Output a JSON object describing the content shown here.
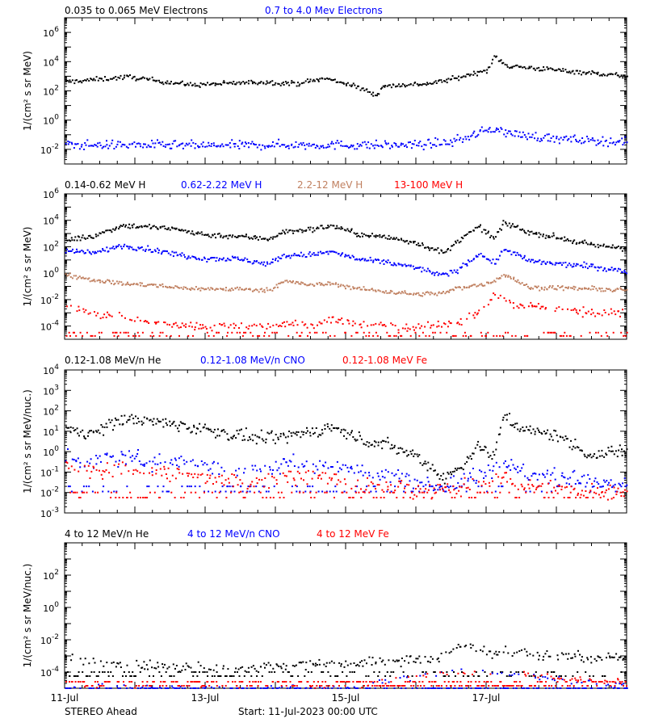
{
  "footer": {
    "spacecraft": "STEREO Ahead",
    "start": "Start: 11-Jul-2023 00:00 UTC"
  },
  "chart_data": [
    {
      "type": "scatter",
      "panel": "electrons",
      "ylabel": "1/(cm² s sr MeV)",
      "ylim_log10": [
        -3,
        7
      ],
      "y_scale": "log",
      "xlim_days": [
        0,
        8
      ],
      "x_ticks": [
        "11-Jul",
        "13-Jul",
        "15-Jul",
        "17-Jul"
      ],
      "x_tick_days": [
        0,
        2,
        4,
        6
      ],
      "y_ticks": [
        {
          "base": "10",
          "exp": "6",
          "v": 6
        },
        {
          "base": "10",
          "exp": "4",
          "v": 4
        },
        {
          "base": "10",
          "exp": "2",
          "v": 2
        },
        {
          "base": "10",
          "exp": "0",
          "v": 0
        },
        {
          "base": "10",
          "exp": "-2",
          "v": -2
        }
      ],
      "series": [
        {
          "name": "0.035 to 0.065 MeV Electrons",
          "color": "#000000",
          "scatter": 0.08,
          "floor_log10": null,
          "floor_frac": 0,
          "x": [
            0,
            0.5,
            0.9,
            1.3,
            1.8,
            2.3,
            2.8,
            3.3,
            3.7,
            4.0,
            4.3,
            4.45,
            4.5,
            4.8,
            5.2,
            5.6,
            5.9,
            6.05,
            6.1,
            6.3,
            6.8,
            7.3,
            8.0
          ],
          "y_log10": [
            2.6,
            2.8,
            2.95,
            2.7,
            2.4,
            2.5,
            2.6,
            2.5,
            2.85,
            2.5,
            2.0,
            1.7,
            2.3,
            2.4,
            2.5,
            2.9,
            3.3,
            3.5,
            4.4,
            3.7,
            3.5,
            3.3,
            3.0
          ]
        },
        {
          "name": "0.7 to 4.0 Mev Electrons",
          "color": "#0000ff",
          "scatter": 0.15,
          "floor_log10": null,
          "floor_frac": 0,
          "x": [
            0,
            1,
            2,
            3,
            4,
            4.5,
            5.0,
            5.5,
            5.7,
            6.0,
            6.1,
            6.3,
            7,
            8
          ],
          "y_log10": [
            -1.7,
            -1.7,
            -1.75,
            -1.7,
            -1.7,
            -1.72,
            -1.7,
            -1.5,
            -1.2,
            -0.7,
            -0.55,
            -0.9,
            -1.3,
            -1.5
          ]
        }
      ],
      "legend": [
        {
          "label": "0.035 to 0.065 MeV Electrons",
          "color": "#000000"
        },
        {
          "label": "0.7 to 4.0 Mev Electrons",
          "color": "#0000ff"
        }
      ]
    },
    {
      "type": "scatter",
      "panel": "protons",
      "ylabel": "1/(cm² s sr MeV)",
      "ylim_log10": [
        -5,
        6
      ],
      "y_scale": "log",
      "xlim_days": [
        0,
        8
      ],
      "x_ticks": [
        "11-Jul",
        "13-Jul",
        "15-Jul",
        "17-Jul"
      ],
      "x_tick_days": [
        0,
        2,
        4,
        6
      ],
      "y_ticks": [
        {
          "base": "10",
          "exp": "6",
          "v": 6
        },
        {
          "base": "10",
          "exp": "4",
          "v": 4
        },
        {
          "base": "10",
          "exp": "2",
          "v": 2
        },
        {
          "base": "10",
          "exp": "0",
          "v": 0
        },
        {
          "base": "10",
          "exp": "-2",
          "v": -2
        },
        {
          "base": "10",
          "exp": "-4",
          "v": -4
        }
      ],
      "series": [
        {
          "name": "0.14-0.62 MeV H",
          "color": "#000000",
          "scatter": 0.1,
          "floor_log10": null,
          "floor_frac": 0,
          "x": [
            0,
            0.4,
            0.8,
            1.2,
            1.6,
            2.0,
            2.4,
            2.9,
            3.1,
            3.5,
            3.8,
            4.2,
            4.6,
            5.0,
            5.4,
            5.6,
            5.9,
            6.1,
            6.25,
            6.4,
            6.6,
            7.0,
            7.5,
            8.0
          ],
          "y_log10": [
            2.5,
            2.8,
            3.6,
            3.5,
            3.3,
            2.9,
            2.8,
            2.6,
            3.1,
            3.3,
            3.6,
            2.9,
            2.7,
            2.3,
            1.5,
            2.5,
            3.5,
            2.6,
            3.8,
            3.5,
            3.1,
            2.7,
            2.1,
            1.9
          ]
        },
        {
          "name": "0.62-2.22 MeV H",
          "color": "#0000ff",
          "scatter": 0.1,
          "floor_log10": null,
          "floor_frac": 0,
          "x": [
            0,
            0.4,
            0.8,
            1.2,
            1.6,
            2.0,
            2.4,
            2.9,
            3.1,
            3.5,
            3.8,
            4.2,
            4.6,
            5.0,
            5.4,
            5.6,
            5.9,
            6.1,
            6.25,
            6.4,
            6.6,
            7.0,
            7.5,
            8.0
          ],
          "y_log10": [
            1.7,
            1.5,
            2.1,
            1.8,
            1.4,
            1.1,
            1.1,
            0.7,
            1.3,
            1.4,
            1.6,
            1.0,
            0.8,
            0.4,
            -0.2,
            0.3,
            1.5,
            0.7,
            1.8,
            1.5,
            0.9,
            0.7,
            0.5,
            0.1
          ]
        },
        {
          "name": "2.2-12 MeV H",
          "color": "#c08060",
          "scatter": 0.08,
          "floor_log10": null,
          "floor_frac": 0,
          "x": [
            0,
            0.4,
            0.8,
            1.2,
            1.6,
            2.0,
            2.4,
            2.9,
            3.1,
            3.5,
            3.8,
            4.2,
            4.6,
            5.0,
            5.4,
            5.6,
            5.9,
            6.1,
            6.25,
            6.4,
            6.6,
            7.0,
            7.5,
            8.0
          ],
          "y_log10": [
            -0.1,
            -0.5,
            -0.8,
            -0.9,
            -1.1,
            -1.2,
            -1.2,
            -1.3,
            -0.6,
            -0.9,
            -0.8,
            -1.2,
            -1.4,
            -1.6,
            -1.5,
            -1.1,
            -0.9,
            -0.6,
            -0.1,
            -0.5,
            -1.1,
            -1.1,
            -1.2,
            -1.3
          ]
        },
        {
          "name": "13-100 MeV H",
          "color": "#ff0000",
          "scatter": 0.15,
          "floor_log10": -4.5,
          "floor_frac": 0.35,
          "x": [
            0,
            0.4,
            0.8,
            1.2,
            1.6,
            2.0,
            2.4,
            2.9,
            3.1,
            3.5,
            3.8,
            4.2,
            4.6,
            5.0,
            5.4,
            5.6,
            5.9,
            6.1,
            6.25,
            6.4,
            6.6,
            7.0,
            7.5,
            8.0
          ],
          "y_log10": [
            -2.5,
            -3.1,
            -3.4,
            -3.7,
            -3.9,
            -4.0,
            -4.0,
            -4.0,
            -3.8,
            -3.9,
            -3.6,
            -3.8,
            -4.0,
            -4.1,
            -3.9,
            -3.8,
            -2.8,
            -1.8,
            -1.7,
            -2.4,
            -2.5,
            -2.6,
            -3.0,
            -3.0
          ]
        }
      ],
      "legend": [
        {
          "label": "0.14-0.62 MeV H",
          "color": "#000000"
        },
        {
          "label": "0.62-2.22 MeV H",
          "color": "#0000ff"
        },
        {
          "label": "2.2-12 MeV H",
          "color": "#c08060"
        },
        {
          "label": "13-100 MeV H",
          "color": "#ff0000"
        }
      ]
    },
    {
      "type": "scatter",
      "panel": "heavy-ions-low",
      "ylabel": "1/(cm² s sr MeV/nuc.)",
      "ylim_log10": [
        -3,
        4
      ],
      "y_scale": "log",
      "xlim_days": [
        0,
        8
      ],
      "x_ticks": [
        "11-Jul",
        "13-Jul",
        "15-Jul",
        "17-Jul"
      ],
      "x_tick_days": [
        0,
        2,
        4,
        6
      ],
      "y_ticks": [
        {
          "base": "10",
          "exp": "4",
          "v": 4
        },
        {
          "base": "10",
          "exp": "3",
          "v": 3
        },
        {
          "base": "10",
          "exp": "2",
          "v": 2
        },
        {
          "base": "10",
          "exp": "1",
          "v": 1
        },
        {
          "base": "10",
          "exp": "0",
          "v": 0
        },
        {
          "base": "10",
          "exp": "-1",
          "v": -1
        },
        {
          "base": "10",
          "exp": "-2",
          "v": -2
        },
        {
          "base": "10",
          "exp": "-3",
          "v": -3
        }
      ],
      "series": [
        {
          "name": "0.12-1.08 MeV/n He",
          "color": "#000000",
          "scatter": 0.15,
          "floor_log10": null,
          "floor_frac": 0,
          "x": [
            0,
            0.4,
            0.8,
            1.2,
            1.6,
            2.0,
            2.4,
            2.9,
            3.1,
            3.5,
            3.8,
            4.2,
            4.6,
            5.0,
            5.4,
            5.6,
            5.9,
            6.1,
            6.25,
            6.4,
            6.6,
            7.0,
            7.5,
            8.0
          ],
          "y_log10": [
            1.1,
            0.9,
            1.6,
            1.5,
            1.3,
            1.1,
            0.8,
            0.6,
            0.7,
            1.0,
            1.2,
            0.6,
            0.3,
            -0.2,
            -1.3,
            -0.8,
            0.3,
            -0.3,
            1.9,
            1.3,
            1.0,
            0.8,
            -0.2,
            0.1
          ]
        },
        {
          "name": "0.12-1.08 MeV/n CNO",
          "color": "#0000ff",
          "scatter": 0.2,
          "floor_log10": -1.7,
          "floor_frac": 0.3,
          "x": [
            0,
            0.4,
            0.8,
            1.2,
            1.6,
            2.0,
            2.4,
            2.9,
            3.1,
            3.5,
            3.8,
            4.2,
            4.6,
            5.0,
            5.4,
            5.6,
            5.9,
            6.1,
            6.25,
            6.4,
            6.6,
            7.0,
            7.5,
            8.0
          ],
          "y_log10": [
            -0.3,
            -0.6,
            -0.2,
            -0.5,
            -0.4,
            -0.7,
            -0.8,
            -1.0,
            -0.4,
            -0.7,
            -0.6,
            -1.0,
            -1.2,
            -1.4,
            -1.6,
            -1.5,
            -1.0,
            -0.8,
            -0.3,
            -0.9,
            -1.1,
            -1.2,
            -1.5,
            -1.6
          ]
        },
        {
          "name": "0.12-1.08 MeV Fe",
          "color": "#ff0000",
          "scatter": 0.2,
          "floor_log10": -2.0,
          "floor_frac": 0.35,
          "x": [
            0,
            0.4,
            0.8,
            1.2,
            1.6,
            2.0,
            2.4,
            2.9,
            3.1,
            3.5,
            3.8,
            4.2,
            4.6,
            5.0,
            5.4,
            5.6,
            5.9,
            6.1,
            6.25,
            6.4,
            6.6,
            7.0,
            7.5,
            8.0
          ],
          "y_log10": [
            -0.8,
            -1.0,
            -0.9,
            -1.0,
            -1.1,
            -1.3,
            -1.4,
            -1.5,
            -1.2,
            -1.3,
            -1.3,
            -1.6,
            -1.7,
            -1.8,
            -1.8,
            -1.8,
            -1.6,
            -1.4,
            -1.2,
            -1.5,
            -1.7,
            -1.8,
            -1.9,
            -1.9
          ]
        }
      ],
      "legend": [
        {
          "label": "0.12-1.08 MeV/n He",
          "color": "#000000"
        },
        {
          "label": "0.12-1.08 MeV/n CNO",
          "color": "#0000ff"
        },
        {
          "label": "0.12-1.08 MeV Fe",
          "color": "#ff0000"
        }
      ]
    },
    {
      "type": "scatter",
      "panel": "heavy-ions-high",
      "ylabel": "1/(cm² s sr MeV/nuc.)",
      "ylim_log10": [
        -5,
        4
      ],
      "y_scale": "log",
      "xlim_days": [
        0,
        8
      ],
      "x_ticks": [
        "11-Jul",
        "13-Jul",
        "15-Jul",
        "17-Jul"
      ],
      "x_tick_days": [
        0,
        2,
        4,
        6
      ],
      "y_ticks": [
        {
          "base": "10",
          "exp": "2",
          "v": 2
        },
        {
          "base": "10",
          "exp": "0",
          "v": 0
        },
        {
          "base": "10",
          "exp": "-2",
          "v": -2
        },
        {
          "base": "10",
          "exp": "-4",
          "v": -4
        }
      ],
      "series": [
        {
          "name": "4 to 12 MeV/n He",
          "color": "#000000",
          "scatter": 0.15,
          "floor_log10": -4.0,
          "floor_frac": 0.4,
          "x": [
            0,
            0.5,
            1.0,
            1.5,
            2.0,
            2.5,
            3.0,
            3.5,
            4.0,
            4.5,
            5.0,
            5.3,
            5.5,
            5.7,
            5.9,
            6.1,
            6.3,
            6.6,
            7.0,
            7.5,
            8.0
          ],
          "y_log10": [
            -3.1,
            -3.4,
            -3.6,
            -3.7,
            -3.8,
            -3.8,
            -3.6,
            -3.4,
            -3.5,
            -3.3,
            -3.3,
            -3.1,
            -2.7,
            -2.3,
            -2.5,
            -2.9,
            -2.7,
            -2.9,
            -3.0,
            -3.1,
            -3.1
          ]
        },
        {
          "name": "4 to 12 MeV/n CNO",
          "color": "#0000ff",
          "scatter": 0.1,
          "floor_log10": -5.0,
          "floor_frac": 0.7,
          "x": [
            0,
            2,
            4,
            5,
            5.8,
            6.5,
            7,
            8
          ],
          "y_log10": [
            -5.0,
            -5.0,
            -5.0,
            -4.2,
            -3.9,
            -4.2,
            -4.5,
            -4.8
          ]
        },
        {
          "name": "4 to 12 MeV Fe",
          "color": "#ff0000",
          "scatter": 0.1,
          "floor_log10": -4.6,
          "floor_frac": 0.7,
          "x": [
            0,
            2,
            4,
            5,
            5.8,
            6.5,
            7,
            8
          ],
          "y_log10": [
            -5.1,
            -5.1,
            -5.1,
            -4.2,
            -4.0,
            -4.1,
            -4.4,
            -4.6
          ]
        }
      ],
      "legend": [
        {
          "label": "4 to 12 MeV/n He",
          "color": "#000000"
        },
        {
          "label": "4 to 12 MeV/n CNO",
          "color": "#0000ff"
        },
        {
          "label": "4 to 12 MeV Fe",
          "color": "#ff0000"
        }
      ]
    }
  ]
}
